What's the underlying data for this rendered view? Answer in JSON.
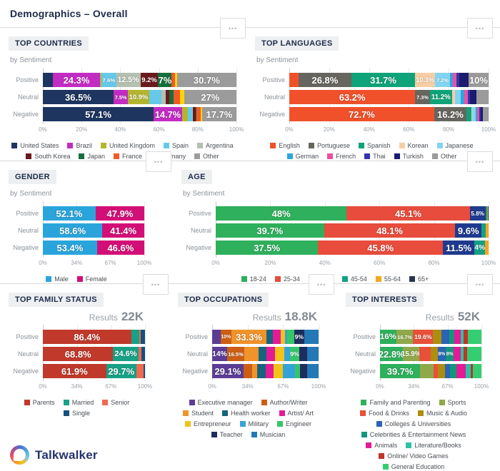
{
  "header": {
    "title": "Demographics – Overall"
  },
  "brand": {
    "name": "Talkwalker"
  },
  "icons": {
    "more_options": "•••"
  },
  "chart_data": [
    {
      "type": "bar",
      "title": "TOP COUNTRIES",
      "subtitle": "by Sentiment",
      "orientation": "horizontal-stacked",
      "categories": [
        "Positive",
        "Neutral",
        "Negative"
      ],
      "x_ticks": [
        "0%",
        "20%",
        "40%",
        "60%",
        "80%",
        "100%"
      ],
      "xlim": [
        0,
        100
      ],
      "legend_position": "bottom",
      "series": [
        {
          "name": "United States",
          "color": "#1e3560",
          "values": [
            5.2,
            36.5,
            57.1
          ],
          "labels": [
            "",
            "36.5%",
            "57.1%"
          ]
        },
        {
          "name": "Brazil",
          "color": "#c32cc3",
          "values": [
            24.3,
            7.5,
            14.7
          ],
          "labels": [
            "24.3%",
            "7.5%",
            "14.7%"
          ]
        },
        {
          "name": "United Kingdom",
          "color": "#b3b52f",
          "values": [
            0.8,
            10.9,
            3.0
          ],
          "labels": [
            "",
            "10.9%",
            ""
          ]
        },
        {
          "name": "Spain",
          "color": "#66c9e9",
          "values": [
            7.6,
            6.5,
            2.2
          ],
          "labels": [
            "7.6%",
            "6.5%",
            ""
          ]
        },
        {
          "name": "Argentina",
          "color": "#b5c0b0",
          "values": [
            12.5,
            1.9,
            0.5
          ],
          "labels": [
            "12.5%",
            "",
            ""
          ]
        },
        {
          "name": "South Korea",
          "color": "#6a1a1c",
          "values": [
            9.2,
            2.0,
            1.2
          ],
          "labels": [
            "9.2%",
            "",
            ""
          ]
        },
        {
          "name": "Japan",
          "color": "#156f3d",
          "values": [
            7.0,
            2.4,
            0.6
          ],
          "labels": [
            "7%",
            "",
            ""
          ]
        },
        {
          "name": "France",
          "color": "#f05a28",
          "values": [
            1.6,
            3.1,
            2.0
          ],
          "labels": [
            "",
            "",
            ""
          ]
        },
        {
          "name": "Germany",
          "color": "#ffd400",
          "values": [
            1.1,
            2.2,
            0.8
          ],
          "labels": [
            "",
            "",
            ""
          ]
        },
        {
          "name": "Other",
          "color": "#9b9b9b",
          "values": [
            30.7,
            27.0,
            17.7
          ],
          "labels": [
            "30.7%",
            "27%",
            "17.7%"
          ]
        }
      ]
    },
    {
      "type": "bar",
      "title": "TOP LANGUAGES",
      "subtitle": "by Sentiment",
      "orientation": "horizontal-stacked",
      "categories": [
        "Positive",
        "Neutral",
        "Negative"
      ],
      "x_ticks": [
        "0%",
        "20%",
        "40%",
        "60%",
        "80%",
        "100%"
      ],
      "xlim": [
        0,
        100
      ],
      "legend_position": "bottom",
      "series": [
        {
          "name": "English",
          "color": "#f0512a",
          "values": [
            4.5,
            63.2,
            72.7
          ],
          "labels": [
            "",
            "63.2%",
            "72.7%"
          ]
        },
        {
          "name": "Portuguese",
          "color": "#67665e",
          "values": [
            26.8,
            7.3,
            16.2
          ],
          "labels": [
            "26.8%",
            "7.3%",
            "16.2%"
          ]
        },
        {
          "name": "Spanish",
          "color": "#0fa379",
          "values": [
            31.7,
            11.2,
            2.5
          ],
          "labels": [
            "31.7%",
            "11.2%",
            ""
          ]
        },
        {
          "name": "Korean",
          "color": "#f7cda4",
          "values": [
            10.3,
            1.5,
            0.5
          ],
          "labels": [
            "10.3%",
            "",
            ""
          ]
        },
        {
          "name": "Japanese",
          "color": "#82d4f2",
          "values": [
            7.2,
            2.8,
            1.5
          ],
          "labels": [
            "7.2%",
            "",
            ""
          ]
        },
        {
          "name": "German",
          "color": "#2ba6de",
          "values": [
            1.5,
            2.0,
            1.0
          ],
          "labels": [
            "",
            "",
            ""
          ]
        },
        {
          "name": "French",
          "color": "#ee4fa0",
          "values": [
            1.8,
            1.8,
            1.0
          ],
          "labels": [
            "",
            "",
            ""
          ]
        },
        {
          "name": "Thai",
          "color": "#3434ad",
          "values": [
            1.7,
            1.0,
            0.6
          ],
          "labels": [
            "",
            "",
            ""
          ]
        },
        {
          "name": "Turkish",
          "color": "#1b1b70",
          "values": [
            4.5,
            3.0,
            1.0
          ],
          "labels": [
            "",
            "",
            ""
          ]
        },
        {
          "name": "Other",
          "color": "#9b9b9b",
          "values": [
            10.0,
            6.2,
            3.0
          ],
          "labels": [
            "10%",
            "6.2%",
            ""
          ]
        }
      ]
    },
    {
      "type": "bar",
      "title": "GENDER",
      "subtitle": "by Sentiment",
      "orientation": "horizontal-stacked",
      "categories": [
        "Positive",
        "Neutral",
        "Negative"
      ],
      "x_ticks": [
        "0%",
        "34%",
        "67%",
        "100%"
      ],
      "xlim": [
        0,
        100
      ],
      "legend_position": "bottom",
      "series": [
        {
          "name": "Male",
          "color": "#2aa5dc",
          "values": [
            52.1,
            58.6,
            53.4
          ],
          "labels": [
            "52.1%",
            "58.6%",
            "53.4%"
          ]
        },
        {
          "name": "Female",
          "color": "#d30f77",
          "values": [
            47.9,
            41.4,
            46.6
          ],
          "labels": [
            "47.9%",
            "41.4%",
            "46.6%"
          ]
        }
      ]
    },
    {
      "type": "bar",
      "title": "AGE",
      "subtitle": "by Sentiment",
      "orientation": "horizontal-stacked",
      "categories": [
        "Positive",
        "Neutral",
        "Negative"
      ],
      "x_ticks": [
        "0%",
        "20%",
        "40%",
        "60%",
        "80%",
        "100%"
      ],
      "xlim": [
        0,
        100
      ],
      "legend_position": "bottom",
      "series": [
        {
          "name": "18-24",
          "color": "#2eb05c",
          "values": [
            48.0,
            39.7,
            37.5
          ],
          "labels": [
            "48%",
            "39.7%",
            "37.5%"
          ]
        },
        {
          "name": "25-34",
          "color": "#e74c3c",
          "values": [
            45.1,
            48.1,
            45.8
          ],
          "labels": [
            "45.1%",
            "48.1%",
            "45.8%"
          ]
        },
        {
          "name": "35-44",
          "color": "#1f3a8f",
          "values": [
            5.8,
            9.6,
            11.5
          ],
          "labels": [
            "5.8%",
            "9.6%",
            "11.5%"
          ]
        },
        {
          "name": "45-54",
          "color": "#14a085",
          "values": [
            0.6,
            1.6,
            4.0
          ],
          "labels": [
            "",
            "",
            "4%"
          ]
        },
        {
          "name": "55-64",
          "color": "#f4a71d",
          "values": [
            0.3,
            1.0,
            1.2
          ],
          "labels": [
            "",
            "",
            ""
          ]
        },
        {
          "name": "65+",
          "color": "#27354d",
          "values": [
            0.2,
            0,
            0
          ],
          "labels": [
            "",
            "",
            ""
          ]
        }
      ]
    },
    {
      "type": "bar",
      "title": "TOP FAMILY STATUS",
      "results_label": "Results",
      "results": "22K",
      "orientation": "horizontal-stacked",
      "categories": [
        "Positive",
        "Neutral",
        "Negative"
      ],
      "x_ticks": [
        "0%",
        "34%",
        "67%",
        "100%"
      ],
      "xlim": [
        0,
        100
      ],
      "legend_position": "bottom",
      "series": [
        {
          "name": "Parents",
          "color": "#c0392b",
          "values": [
            86.4,
            68.8,
            61.9
          ],
          "labels": [
            "86.4%",
            "68.8%",
            "61.9%"
          ]
        },
        {
          "name": "Married",
          "color": "#17a185",
          "values": [
            8.0,
            24.6,
            29.7
          ],
          "labels": [
            "",
            "24.6%",
            "29.7%"
          ]
        },
        {
          "name": "Senior",
          "color": "#ef6a50",
          "values": [
            1.6,
            3.2,
            7.0
          ],
          "labels": [
            "",
            "",
            "7%"
          ]
        },
        {
          "name": "Single",
          "color": "#14507f",
          "values": [
            4.0,
            3.4,
            1.4
          ],
          "labels": [
            "",
            "",
            ""
          ]
        }
      ]
    },
    {
      "type": "bar",
      "title": "TOP OCCUPATIONS",
      "results_label": "Results",
      "results": "18.8K",
      "orientation": "horizontal-stacked",
      "categories": [
        "Positive",
        "Neutral",
        "Negative"
      ],
      "x_ticks": [
        "0%",
        "34%",
        "67%",
        "100%"
      ],
      "xlim": [
        0,
        100
      ],
      "legend_position": "bottom",
      "series": [
        {
          "name": "Executive manager",
          "color": "#5c3d96",
          "values": [
            8.0,
            14.0,
            29.1
          ],
          "labels": [
            "",
            "14%",
            "29.1%"
          ]
        },
        {
          "name": "Author/Writer",
          "color": "#cc5f14",
          "values": [
            10.0,
            16.5,
            8.0
          ],
          "labels": [
            "10%",
            "16.5%",
            ""
          ]
        },
        {
          "name": "Student",
          "color": "#f0932a",
          "values": [
            33.3,
            13.2,
            4.5
          ],
          "labels": [
            "33.3%",
            "13.2%",
            ""
          ]
        },
        {
          "name": "Health worker",
          "color": "#16647e",
          "values": [
            6.0,
            7.3,
            8.0
          ],
          "labels": [
            "",
            "",
            ""
          ]
        },
        {
          "name": "Artist/ Art",
          "color": "#e51a97",
          "values": [
            7.0,
            8.0,
            7.5
          ],
          "labels": [
            "",
            "",
            ""
          ]
        },
        {
          "name": "Entrepreneur",
          "color": "#f2c318",
          "values": [
            4.5,
            8.5,
            9.0
          ],
          "labels": [
            "",
            "",
            ""
          ]
        },
        {
          "name": "Military",
          "color": "#34a3d9",
          "values": [
            1.5,
            5.5,
            11.0
          ],
          "labels": [
            "",
            "",
            ""
          ]
        },
        {
          "name": "Engineer",
          "color": "#35c669",
          "values": [
            7.0,
            9.0,
            4.5
          ],
          "labels": [
            "7%",
            "9%",
            ""
          ]
        },
        {
          "name": "Teacher",
          "color": "#1d2e5e",
          "values": [
            9.0,
            7.0,
            7.0
          ],
          "labels": [
            "9%",
            "",
            ""
          ]
        },
        {
          "name": "Musician",
          "color": "#2478b5",
          "values": [
            13.7,
            11.0,
            10.4
          ],
          "labels": [
            "",
            "",
            ""
          ]
        }
      ]
    },
    {
      "type": "bar",
      "title": "TOP INTERESTS",
      "results_label": "Results",
      "results": "52K",
      "orientation": "horizontal-stacked",
      "categories": [
        "Positive",
        "Neutral",
        "Negative"
      ],
      "x_ticks": [
        "0%",
        "34%",
        "67%",
        "100%"
      ],
      "xlim": [
        0,
        100
      ],
      "legend_position": "bottom",
      "series": [
        {
          "name": "Family and Parenting",
          "color": "#2eb05c",
          "values": [
            16.0,
            22.8,
            39.7
          ],
          "labels": [
            "16%",
            "22.8%",
            "39.7%"
          ]
        },
        {
          "name": "Sports",
          "color": "#8fa94a",
          "values": [
            16.7,
            15.9,
            13.1
          ],
          "labels": [
            "16.7%",
            "15.9%",
            "13.1%"
          ]
        },
        {
          "name": "Food & Drinks",
          "color": "#e8503a",
          "values": [
            19.6,
            11.1,
            4.0
          ],
          "labels": [
            "19.6%",
            "11.1%",
            ""
          ]
        },
        {
          "name": "Music & Audio",
          "color": "#ad8e0e",
          "values": [
            8.0,
            7.0,
            7.0
          ],
          "labels": [
            "",
            "",
            ""
          ]
        },
        {
          "name": "Colleges & Universities",
          "color": "#2a64b5",
          "values": [
            8.0,
            8.0,
            5.5
          ],
          "labels": [
            "",
            "8%",
            ""
          ]
        },
        {
          "name": "Celebrities & Entertainment News",
          "color": "#12967d",
          "values": [
            5.0,
            8.0,
            6.0
          ],
          "labels": [
            "",
            "8%",
            ""
          ]
        },
        {
          "name": "Animals",
          "color": "#e51a97",
          "values": [
            6.0,
            7.0,
            9.0
          ],
          "labels": [
            "",
            "7%",
            ""
          ]
        },
        {
          "name": "Literature/Books",
          "color": "#2cc2a5",
          "values": [
            3.0,
            2.5,
            5.0
          ],
          "labels": [
            "",
            "",
            ""
          ]
        },
        {
          "name": "Online/ Video Games",
          "color": "#bf3527",
          "values": [
            4.0,
            3.5,
            2.0
          ],
          "labels": [
            "",
            "",
            ""
          ]
        },
        {
          "name": "General Education",
          "color": "#35cd72",
          "values": [
            13.7,
            14.2,
            8.7
          ],
          "labels": [
            "",
            "",
            ""
          ]
        }
      ]
    }
  ]
}
